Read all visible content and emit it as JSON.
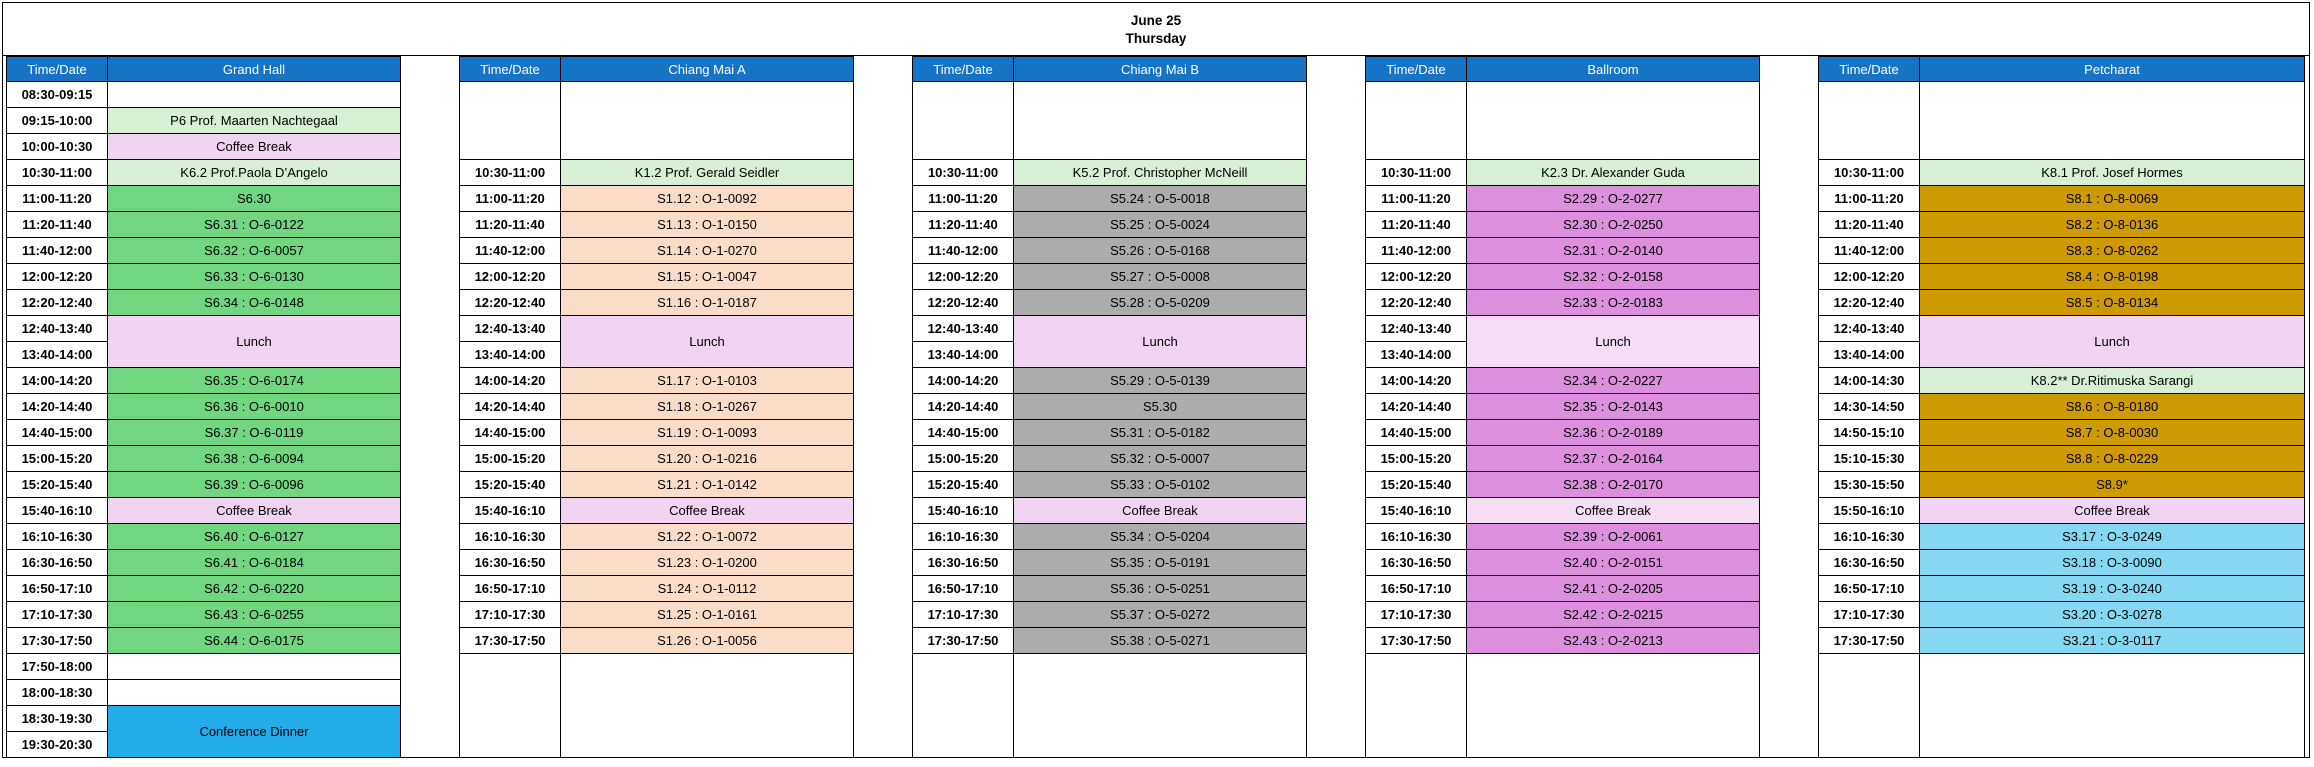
{
  "sheet_title": {
    "date": "June 25",
    "day": "Thursday"
  },
  "column_headers": {
    "time": "Time/Date"
  },
  "colors": {
    "header_bg": "#1674C7",
    "header_text": "#FFFFFF",
    "grid_line": "#000000",
    "keynote": "#D6EFD5",
    "break": "#F1D4F1",
    "ballroom_break": "#F5DDF5",
    "green": "#72D57F",
    "peach": "#FBDCC6",
    "gray": "#ACACAC",
    "orchid": "#DC8FDC",
    "gold": "#CE9A04",
    "blue": "#86D7F2",
    "dinner": "#22ACE9",
    "empty": "#FFFFFF"
  },
  "venues": [
    {
      "name": "Grand Hall",
      "wide": false,
      "lead_empty_rows": 0,
      "tail_empty_rows": 0,
      "rows": [
        {
          "time": "08:30-09:15",
          "session": "",
          "bg": "empty"
        },
        {
          "time": "09:15-10:00",
          "session": "P6 Prof. Maarten Nachtegaal",
          "bg": "keynote"
        },
        {
          "time": "10:00-10:30",
          "session": "Coffee Break",
          "bg": "break"
        },
        {
          "time": "10:30-11:00",
          "session": "K6.2 Prof.Paola D’Angelo",
          "bg": "keynote"
        },
        {
          "time": "11:00-11:20",
          "session": "S6.30",
          "bg": "green"
        },
        {
          "time": "11:20-11:40",
          "session": "S6.31 : O-6-0122",
          "bg": "green"
        },
        {
          "time": "11:40-12:00",
          "session": "S6.32 : O-6-0057",
          "bg": "green"
        },
        {
          "time": "12:00-12:20",
          "session": "S6.33 : O-6-0130",
          "bg": "green"
        },
        {
          "time": "12:20-12:40",
          "session": "S6.34 : O-6-0148",
          "bg": "green"
        },
        {
          "time": "12:40-13:40",
          "session": "Lunch",
          "bg": "break",
          "rowspan": 2
        },
        {
          "time": "13:40-14:00"
        },
        {
          "time": "14:00-14:20",
          "session": "S6.35 : O-6-0174",
          "bg": "green"
        },
        {
          "time": "14:20-14:40",
          "session": "S6.36 : O-6-0010",
          "bg": "green"
        },
        {
          "time": "14:40-15:00",
          "session": "S6.37 : O-6-0119",
          "bg": "green"
        },
        {
          "time": "15:00-15:20",
          "session": "S6.38 : O-6-0094",
          "bg": "green"
        },
        {
          "time": "15:20-15:40",
          "session": "S6.39 : O-6-0096",
          "bg": "green"
        },
        {
          "time": "15:40-16:10",
          "session": "Coffee Break",
          "bg": "break"
        },
        {
          "time": "16:10-16:30",
          "session": "S6.40 : O-6-0127",
          "bg": "green"
        },
        {
          "time": "16:30-16:50",
          "session": "S6.41 : O-6-0184",
          "bg": "green"
        },
        {
          "time": "16:50-17:10",
          "session": "S6.42 : O-6-0220",
          "bg": "green"
        },
        {
          "time": "17:10-17:30",
          "session": "S6.43 : O-6-0255",
          "bg": "green"
        },
        {
          "time": "17:30-17:50",
          "session": "S6.44 : O-6-0175",
          "bg": "green"
        },
        {
          "time": "17:50-18:00",
          "session": "",
          "bg": "empty"
        },
        {
          "time": "18:00-18:30",
          "session": "",
          "bg": "empty"
        },
        {
          "time": "18:30-19:30",
          "session": "Conference Dinner",
          "bg": "dinner",
          "rowspan": 2
        },
        {
          "time": "19:30-20:30"
        }
      ]
    },
    {
      "name": "Chiang Mai A",
      "wide": false,
      "lead_empty_rows": 3,
      "tail_empty_rows": 4,
      "rows": [
        {
          "time": "10:30-11:00",
          "session": "K1.2 Prof. Gerald Seidler",
          "bg": "keynote"
        },
        {
          "time": "11:00-11:20",
          "session": "S1.12 : O-1-0092",
          "bg": "peach"
        },
        {
          "time": "11:20-11:40",
          "session": "S1.13 : O-1-0150",
          "bg": "peach"
        },
        {
          "time": "11:40-12:00",
          "session": "S1.14 : O-1-0270",
          "bg": "peach"
        },
        {
          "time": "12:00-12:20",
          "session": "S1.15 : O-1-0047",
          "bg": "peach"
        },
        {
          "time": "12:20-12:40",
          "session": "S1.16 : O-1-0187",
          "bg": "peach"
        },
        {
          "time": "12:40-13:40",
          "session": "Lunch",
          "bg": "break",
          "rowspan": 2
        },
        {
          "time": "13:40-14:00"
        },
        {
          "time": "14:00-14:20",
          "session": "S1.17 : O-1-0103",
          "bg": "peach"
        },
        {
          "time": "14:20-14:40",
          "session": "S1.18 : O-1-0267",
          "bg": "peach"
        },
        {
          "time": "14:40-15:00",
          "session": "S1.19 : O-1-0093",
          "bg": "peach"
        },
        {
          "time": "15:00-15:20",
          "session": "S1.20 : O-1-0216",
          "bg": "peach"
        },
        {
          "time": "15:20-15:40",
          "session": "S1.21 : O-1-0142",
          "bg": "peach"
        },
        {
          "time": "15:40-16:10",
          "session": "Coffee Break",
          "bg": "break"
        },
        {
          "time": "16:10-16:30",
          "session": "S1.22 : O-1-0072",
          "bg": "peach"
        },
        {
          "time": "16:30-16:50",
          "session": "S1.23 : O-1-0200",
          "bg": "peach"
        },
        {
          "time": "16:50-17:10",
          "session": "S1.24 : O-1-0112",
          "bg": "peach"
        },
        {
          "time": "17:10-17:30",
          "session": "S1.25 : O-1-0161",
          "bg": "peach"
        },
        {
          "time": "17:30-17:50",
          "session": "S1.26 : O-1-0056",
          "bg": "peach"
        }
      ]
    },
    {
      "name": "Chiang Mai B",
      "wide": false,
      "lead_empty_rows": 3,
      "tail_empty_rows": 4,
      "rows": [
        {
          "time": "10:30-11:00",
          "session": "K5.2 Prof. Christopher McNeill",
          "bg": "keynote"
        },
        {
          "time": "11:00-11:20",
          "session": "S5.24 : O-5-0018",
          "bg": "gray"
        },
        {
          "time": "11:20-11:40",
          "session": "S5.25 : O-5-0024",
          "bg": "gray"
        },
        {
          "time": "11:40-12:00",
          "session": "S5.26 : O-5-0168",
          "bg": "gray"
        },
        {
          "time": "12:00-12:20",
          "session": "S5.27 : O-5-0008",
          "bg": "gray"
        },
        {
          "time": "12:20-12:40",
          "session": "S5.28 : O-5-0209",
          "bg": "gray"
        },
        {
          "time": "12:40-13:40",
          "session": "Lunch",
          "bg": "break",
          "rowspan": 2
        },
        {
          "time": "13:40-14:00"
        },
        {
          "time": "14:00-14:20",
          "session": "S5.29 : O-5-0139",
          "bg": "gray"
        },
        {
          "time": "14:20-14:40",
          "session": "S5.30",
          "bg": "gray"
        },
        {
          "time": "14:40-15:00",
          "session": "S5.31 : O-5-0182",
          "bg": "gray"
        },
        {
          "time": "15:00-15:20",
          "session": "S5.32 : O-5-0007",
          "bg": "gray"
        },
        {
          "time": "15:20-15:40",
          "session": "S5.33 : O-5-0102",
          "bg": "gray"
        },
        {
          "time": "15:40-16:10",
          "session": "Coffee Break",
          "bg": "break"
        },
        {
          "time": "16:10-16:30",
          "session": "S5.34 : O-5-0204",
          "bg": "gray"
        },
        {
          "time": "16:30-16:50",
          "session": "S5.35 : O-5-0191",
          "bg": "gray"
        },
        {
          "time": "16:50-17:10",
          "session": "S5.36 : O-5-0251",
          "bg": "gray"
        },
        {
          "time": "17:10-17:30",
          "session": "S5.37 : O-5-0272",
          "bg": "gray"
        },
        {
          "time": "17:30-17:50",
          "session": "S5.38 : O-5-0271",
          "bg": "gray"
        }
      ]
    },
    {
      "name": "Ballroom",
      "wide": false,
      "lead_empty_rows": 3,
      "tail_empty_rows": 4,
      "rows": [
        {
          "time": "10:30-11:00",
          "session": "K2.3 Dr. Alexander Guda",
          "bg": "keynote"
        },
        {
          "time": "11:00-11:20",
          "session": "S2.29 : O-2-0277",
          "bg": "orchid"
        },
        {
          "time": "11:20-11:40",
          "session": "S2.30 : O-2-0250",
          "bg": "orchid"
        },
        {
          "time": "11:40-12:00",
          "session": "S2.31 : O-2-0140",
          "bg": "orchid"
        },
        {
          "time": "12:00-12:20",
          "session": "S2.32 : O-2-0158",
          "bg": "orchid"
        },
        {
          "time": "12:20-12:40",
          "session": "S2.33 : O-2-0183",
          "bg": "orchid"
        },
        {
          "time": "12:40-13:40",
          "session": "Lunch",
          "bg": "ballroom_break",
          "rowspan": 2
        },
        {
          "time": "13:40-14:00"
        },
        {
          "time": "14:00-14:20",
          "session": "S2.34 : O-2-0227",
          "bg": "orchid"
        },
        {
          "time": "14:20-14:40",
          "session": "S2.35 : O-2-0143",
          "bg": "orchid"
        },
        {
          "time": "14:40-15:00",
          "session": "S2.36 : O-2-0189",
          "bg": "orchid"
        },
        {
          "time": "15:00-15:20",
          "session": "S2.37 : O-2-0164",
          "bg": "orchid"
        },
        {
          "time": "15:20-15:40",
          "session": "S2.38 : O-2-0170",
          "bg": "orchid"
        },
        {
          "time": "15:40-16:10",
          "session": "Coffee Break",
          "bg": "ballroom_break"
        },
        {
          "time": "16:10-16:30",
          "session": "S2.39 : O-2-0061",
          "bg": "orchid"
        },
        {
          "time": "16:30-16:50",
          "session": "S2.40 : O-2-0151",
          "bg": "orchid"
        },
        {
          "time": "16:50-17:10",
          "session": "S2.41 : O-2-0205",
          "bg": "orchid"
        },
        {
          "time": "17:10-17:30",
          "session": "S2.42 : O-2-0215",
          "bg": "orchid"
        },
        {
          "time": "17:30-17:50",
          "session": "S2.43 : O-2-0213",
          "bg": "orchid"
        }
      ]
    },
    {
      "name": "Petcharat",
      "wide": true,
      "lead_empty_rows": 3,
      "tail_empty_rows": 4,
      "rows": [
        {
          "time": "10:30-11:00",
          "session": "K8.1 Prof. Josef Hormes",
          "bg": "keynote"
        },
        {
          "time": "11:00-11:20",
          "session": "S8.1 : O-8-0069",
          "bg": "gold"
        },
        {
          "time": "11:20-11:40",
          "session": "S8.2 : O-8-0136",
          "bg": "gold"
        },
        {
          "time": "11:40-12:00",
          "session": "S8.3 : O-8-0262",
          "bg": "gold"
        },
        {
          "time": "12:00-12:20",
          "session": "S8.4 : O-8-0198",
          "bg": "gold"
        },
        {
          "time": "12:20-12:40",
          "session": "S8.5 : O-8-0134",
          "bg": "gold"
        },
        {
          "time": "12:40-13:40",
          "session": "Lunch",
          "bg": "break",
          "rowspan": 2
        },
        {
          "time": "13:40-14:00"
        },
        {
          "time": "14:00-14:30",
          "session": "K8.2** Dr.Ritimuska Sarangi",
          "bg": "keynote"
        },
        {
          "time": "14:30-14:50",
          "session": "S8.6 : O-8-0180",
          "bg": "gold"
        },
        {
          "time": "14:50-15:10",
          "session": "S8.7 : O-8-0030",
          "bg": "gold"
        },
        {
          "time": "15:10-15:30",
          "session": "S8.8 : O-8-0229",
          "bg": "gold"
        },
        {
          "time": "15:30-15:50",
          "session": "S8.9*",
          "bg": "gold"
        },
        {
          "time": "15:50-16:10",
          "session": "Coffee Break",
          "bg": "break"
        },
        {
          "time": "16:10-16:30",
          "session": "S3.17 : O-3-0249",
          "bg": "blue"
        },
        {
          "time": "16:30-16:50",
          "session": "S3.18 : O-3-0090",
          "bg": "blue"
        },
        {
          "time": "16:50-17:10",
          "session": "S3.19 : O-3-0240",
          "bg": "blue"
        },
        {
          "time": "17:10-17:30",
          "session": "S3.20 : O-3-0278",
          "bg": "blue"
        },
        {
          "time": "17:30-17:50",
          "session": "S3.21 : O-3-0117",
          "bg": "blue"
        }
      ]
    }
  ]
}
